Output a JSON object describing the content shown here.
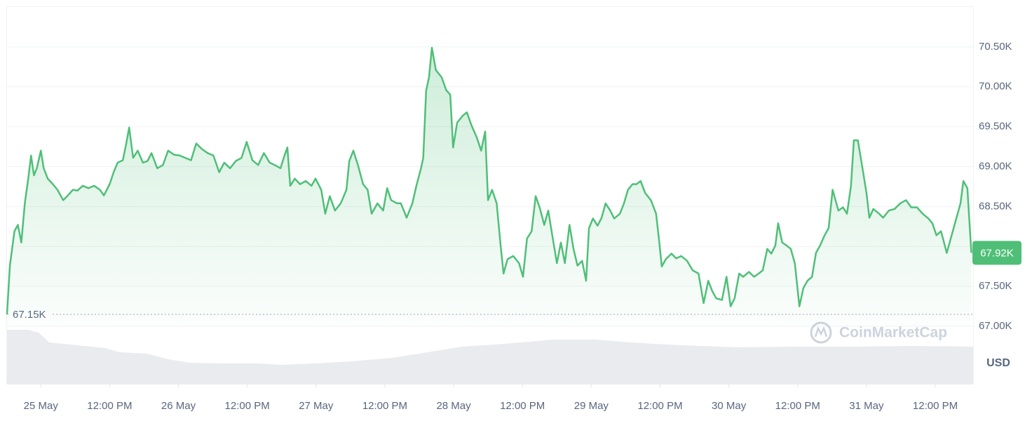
{
  "chart_data": {
    "type": "area-line",
    "unit": "USD",
    "watermark": "CoinMarketCap",
    "color": "#4fbf78",
    "grid": true,
    "baseline": {
      "value": 67150,
      "label": "67.15K"
    },
    "current": {
      "value": 67920,
      "label": "67.92K"
    },
    "xlim": [
      -5.9,
      162.6
    ],
    "ylim": [
      67000,
      71000
    ],
    "xticks": [
      {
        "value": 0,
        "label": "25 May"
      },
      {
        "value": 12,
        "label": "12:00 PM"
      },
      {
        "value": 24,
        "label": "26 May"
      },
      {
        "value": 36,
        "label": "12:00 PM"
      },
      {
        "value": 48,
        "label": "27 May"
      },
      {
        "value": 60,
        "label": "12:00 PM"
      },
      {
        "value": 72,
        "label": "28 May"
      },
      {
        "value": 84,
        "label": "12:00 PM"
      },
      {
        "value": 96,
        "label": "29 May"
      },
      {
        "value": 108,
        "label": "12:00 PM"
      },
      {
        "value": 120,
        "label": "30 May"
      },
      {
        "value": 132,
        "label": "12:00 PM"
      },
      {
        "value": 144,
        "label": "31 May"
      },
      {
        "value": 156,
        "label": "12:00 PM"
      }
    ],
    "yticks": [
      {
        "value": 67000,
        "label": "67.00K"
      },
      {
        "value": 67500,
        "label": "67.50K"
      },
      {
        "value": 68000,
        "label": "68.00K"
      },
      {
        "value": 68500,
        "label": "68.50K"
      },
      {
        "value": 69000,
        "label": "69.00K"
      },
      {
        "value": 69500,
        "label": "69.50K"
      },
      {
        "value": 70000,
        "label": "70.00K"
      },
      {
        "value": 70500,
        "label": "70.50K"
      }
    ],
    "x": [
      -5.9,
      -5.4,
      -4.6,
      -4.0,
      -3.4,
      -2.8,
      -2.2,
      -1.7,
      -1.2,
      -0.7,
      0,
      0.5,
      1.2,
      2.1,
      2.9,
      3.9,
      4.6,
      5.6,
      6.4,
      7.3,
      8.3,
      9.3,
      10.3,
      11.0,
      12.0,
      12.7,
      13.4,
      14.3,
      14.9,
      15.4,
      16.1,
      16.9,
      17.8,
      18.6,
      19.3,
      20.3,
      21.3,
      22.2,
      23.2,
      24.2,
      25.2,
      26.2,
      27.1,
      28.1,
      29.1,
      30.1,
      31.1,
      32.0,
      33.0,
      34.0,
      35.0,
      35.9,
      36.9,
      37.9,
      38.9,
      39.9,
      40.8,
      41.8,
      42.5,
      43.0,
      43.5,
      44.3,
      45.2,
      46.2,
      47.2,
      47.9,
      48.9,
      49.6,
      50.4,
      51.3,
      52.3,
      53.3,
      53.8,
      54.5,
      55.3,
      56.2,
      57.0,
      57.7,
      58.7,
      59.7,
      60.4,
      61.1,
      62.1,
      62.8,
      63.8,
      64.8,
      65.5,
      66.3,
      66.7,
      67.2,
      67.7,
      68.2,
      68.9,
      69.9,
      70.7,
      71.4,
      71.9,
      72.6,
      73.6,
      74.3,
      75.1,
      76.0,
      76.8,
      77.5,
      78.0,
      78.7,
      79.5,
      80.2,
      80.7,
      81.4,
      82.4,
      83.4,
      84.1,
      84.8,
      85.6,
      86.3,
      87.0,
      87.8,
      88.5,
      89.2,
      90.0,
      90.7,
      91.4,
      92.2,
      92.9,
      93.6,
      94.4,
      95.1,
      95.6,
      96.3,
      97.1,
      97.8,
      98.5,
      99.3,
      100.0,
      101.0,
      101.7,
      102.4,
      103.2,
      103.9,
      104.6,
      105.4,
      106.4,
      107.3,
      107.8,
      108.3,
      109.0,
      110.0,
      110.8,
      111.7,
      112.7,
      113.7,
      114.7,
      115.6,
      116.4,
      117.1,
      117.8,
      118.8,
      119.6,
      120.3,
      121.0,
      121.8,
      122.5,
      123.5,
      124.4,
      125.2,
      125.9,
      126.7,
      127.4,
      128.1,
      128.6,
      129.3,
      130.1,
      130.8,
      131.5,
      132.3,
      133.0,
      133.7,
      134.5,
      135.2,
      135.9,
      136.7,
      137.4,
      138.1,
      139.1,
      139.9,
      140.6,
      141.3,
      141.8,
      142.5,
      143.3,
      144.0,
      144.5,
      145.2,
      146.2,
      146.9,
      147.9,
      148.9,
      149.9,
      150.9,
      151.8,
      152.8,
      153.8,
      154.8,
      155.5,
      156.2,
      157.0,
      158.0,
      158.7,
      159.7,
      160.4,
      160.9,
      161.6,
      162.3
    ],
    "values": [
      67150,
      67760,
      68190,
      68270,
      68050,
      68540,
      68850,
      69140,
      68890,
      68980,
      69200,
      68980,
      68850,
      68780,
      68710,
      68580,
      68630,
      68710,
      68700,
      68760,
      68730,
      68760,
      68710,
      68640,
      68780,
      68930,
      69050,
      69080,
      69290,
      69490,
      69110,
      69200,
      69050,
      69070,
      69170,
      68980,
      69020,
      69200,
      69150,
      69140,
      69110,
      69080,
      69290,
      69220,
      69170,
      69140,
      68930,
      69050,
      68980,
      69070,
      69110,
      69310,
      69080,
      69020,
      69170,
      69050,
      69020,
      68980,
      69140,
      69240,
      68760,
      68850,
      68780,
      68820,
      68760,
      68850,
      68710,
      68410,
      68630,
      68450,
      68540,
      68710,
      69070,
      69200,
      69020,
      68780,
      68710,
      68410,
      68540,
      68450,
      68730,
      68580,
      68540,
      68540,
      68360,
      68540,
      68760,
      68980,
      69110,
      69950,
      70120,
      70490,
      70210,
      70120,
      69960,
      69900,
      69240,
      69550,
      69640,
      69680,
      69520,
      69370,
      69200,
      69440,
      68580,
      68710,
      68540,
      68010,
      67660,
      67840,
      67880,
      67790,
      67620,
      68100,
      68190,
      68630,
      68490,
      68270,
      68450,
      68140,
      67790,
      68050,
      67790,
      68270,
      67970,
      67760,
      67820,
      67570,
      68230,
      68350,
      68260,
      68360,
      68540,
      68450,
      68350,
      68410,
      68540,
      68710,
      68780,
      68780,
      68820,
      68670,
      68580,
      68410,
      68100,
      67750,
      67840,
      67910,
      67850,
      67880,
      67820,
      67700,
      67660,
      67290,
      67570,
      67440,
      67350,
      67330,
      67620,
      67250,
      67350,
      67660,
      67620,
      67680,
      67620,
      67660,
      67700,
      67970,
      67910,
      68010,
      68290,
      68050,
      68010,
      67970,
      67790,
      67250,
      67480,
      67570,
      67620,
      67920,
      68010,
      68140,
      68230,
      68710,
      68450,
      68490,
      68410,
      68760,
      69330,
      69330,
      68980,
      68670,
      68360,
      68470,
      68410,
      68360,
      68450,
      68470,
      68540,
      68580,
      68490,
      68490,
      68410,
      68350,
      68290,
      68140,
      68190,
      67920,
      68100,
      68360,
      68540,
      68820,
      68730,
      67920
    ]
  }
}
